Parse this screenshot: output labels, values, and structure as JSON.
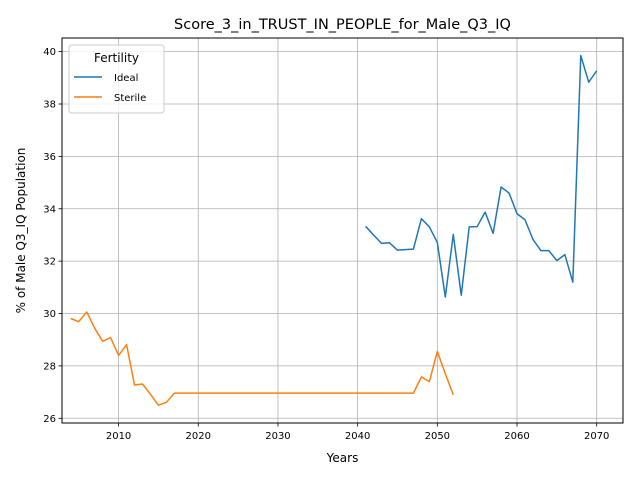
{
  "chart_data": {
    "type": "line",
    "title": "Score_3_in_TRUST_IN_PEOPLE_for_Male_Q3_IQ",
    "xlabel": "Years",
    "ylabel": "% of Male Q3_IQ Population",
    "xlim": [
      2002.9,
      2073.3
    ],
    "ylim": [
      25.82,
      40.52
    ],
    "xticks": [
      2010,
      2020,
      2030,
      2040,
      2050,
      2060,
      2070
    ],
    "yticks": [
      26,
      28,
      30,
      32,
      34,
      36,
      38,
      40
    ],
    "grid": true,
    "legend": {
      "title": "Fertility",
      "position": "top-left"
    },
    "series": [
      {
        "name": "Ideal",
        "color": "#1f77b4",
        "x": [
          2041,
          2042,
          2043,
          2044,
          2045,
          2046,
          2047,
          2048,
          2049,
          2050,
          2051,
          2052,
          2053,
          2054,
          2055,
          2056,
          2057,
          2058,
          2059,
          2060,
          2061,
          2062,
          2063,
          2064,
          2065,
          2066,
          2067,
          2068,
          2069,
          2070
        ],
        "y": [
          33.33,
          33.0,
          32.68,
          32.7,
          32.42,
          32.44,
          32.46,
          33.62,
          33.31,
          32.71,
          30.63,
          33.02,
          30.7,
          33.31,
          33.32,
          33.87,
          33.06,
          34.83,
          34.6,
          33.81,
          33.58,
          32.83,
          32.4,
          32.4,
          32.02,
          32.25,
          31.2,
          39.85,
          38.83,
          39.27
        ]
      },
      {
        "name": "Sterile",
        "color": "#ff7f0e",
        "x": [
          2004,
          2005,
          2006,
          2007,
          2008,
          2009,
          2010,
          2011,
          2012,
          2013,
          2014,
          2015,
          2016,
          2017,
          2018,
          2019,
          2020,
          2021,
          2022,
          2023,
          2024,
          2025,
          2026,
          2027,
          2028,
          2029,
          2030,
          2031,
          2032,
          2033,
          2034,
          2035,
          2036,
          2037,
          2038,
          2039,
          2040,
          2041,
          2042,
          2043,
          2044,
          2045,
          2046,
          2047,
          2048,
          2049,
          2050,
          2051,
          2052
        ],
        "y": [
          29.81,
          29.69,
          30.06,
          29.44,
          28.94,
          29.08,
          28.4,
          28.81,
          27.27,
          27.31,
          26.92,
          26.5,
          26.61,
          26.96,
          26.96,
          26.96,
          26.96,
          26.96,
          26.96,
          26.96,
          26.96,
          26.96,
          26.96,
          26.96,
          26.96,
          26.96,
          26.96,
          26.96,
          26.96,
          26.96,
          26.96,
          26.96,
          26.96,
          26.96,
          26.96,
          26.96,
          26.96,
          26.96,
          26.96,
          26.96,
          26.96,
          26.96,
          26.96,
          26.96,
          27.58,
          27.4,
          28.55,
          27.7,
          26.9
        ]
      }
    ]
  }
}
